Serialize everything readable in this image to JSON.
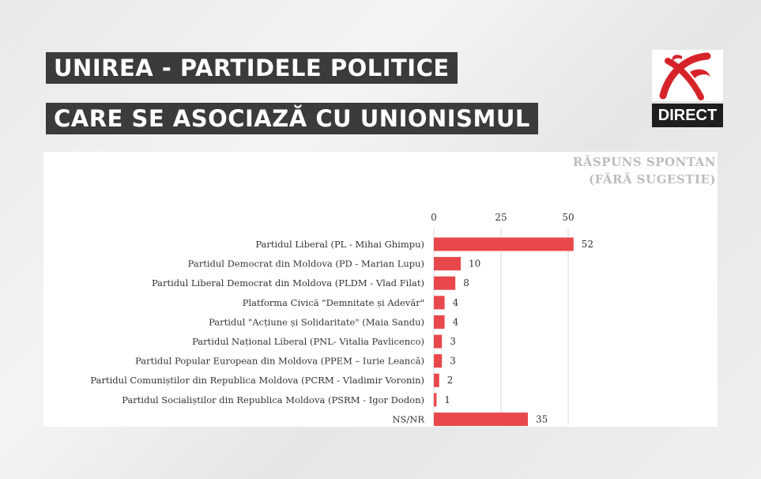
{
  "header": {
    "title_line1": "UNIREA - PARTIDELE POLITICE",
    "title_line2": "CARE SE ASOCIAZĂ CU UNIONISMUL"
  },
  "channel": {
    "logo_icon": "channel-logo-icon",
    "badge": "DIRECT",
    "accent": "#d6232a"
  },
  "chart_data": {
    "type": "bar",
    "orientation": "horizontal",
    "note_line1": "RĂSPUNS SPONTAN",
    "note_line2": "(FĂRĂ SUGESTIE)",
    "xlim": [
      0,
      55
    ],
    "ticks": [
      0,
      25,
      50
    ],
    "grid": true,
    "bar_color": "#e8484b",
    "categories": [
      "Partidul Liberal (PL - Mihai Ghimpu)",
      "Partidul Democrat din Moldova (PD - Marian Lupu)",
      "Partidul Liberal Democrat din Moldova (PLDM - Vlad Filat)",
      "Platforma Civică \"Demnitate și Adevăr\"",
      "Partidul \"Acțiune și Solidaritate\" (Maia Sandu)",
      "Partidul Național Liberal (PNL- Vitalia Pavlicenco)",
      "Partidul Popular European din Moldova (PPEM – Iurie Leancă)",
      "Partidul Comuniștilor din Republica Moldova (PCRM - Vladimir Voronin)",
      "Partidul Socialiștilor din Republica Moldova (PSRM - Igor Dodon)",
      "NS/NR"
    ],
    "values": [
      52,
      10,
      8,
      4,
      4,
      3,
      3,
      2,
      1,
      35
    ]
  }
}
